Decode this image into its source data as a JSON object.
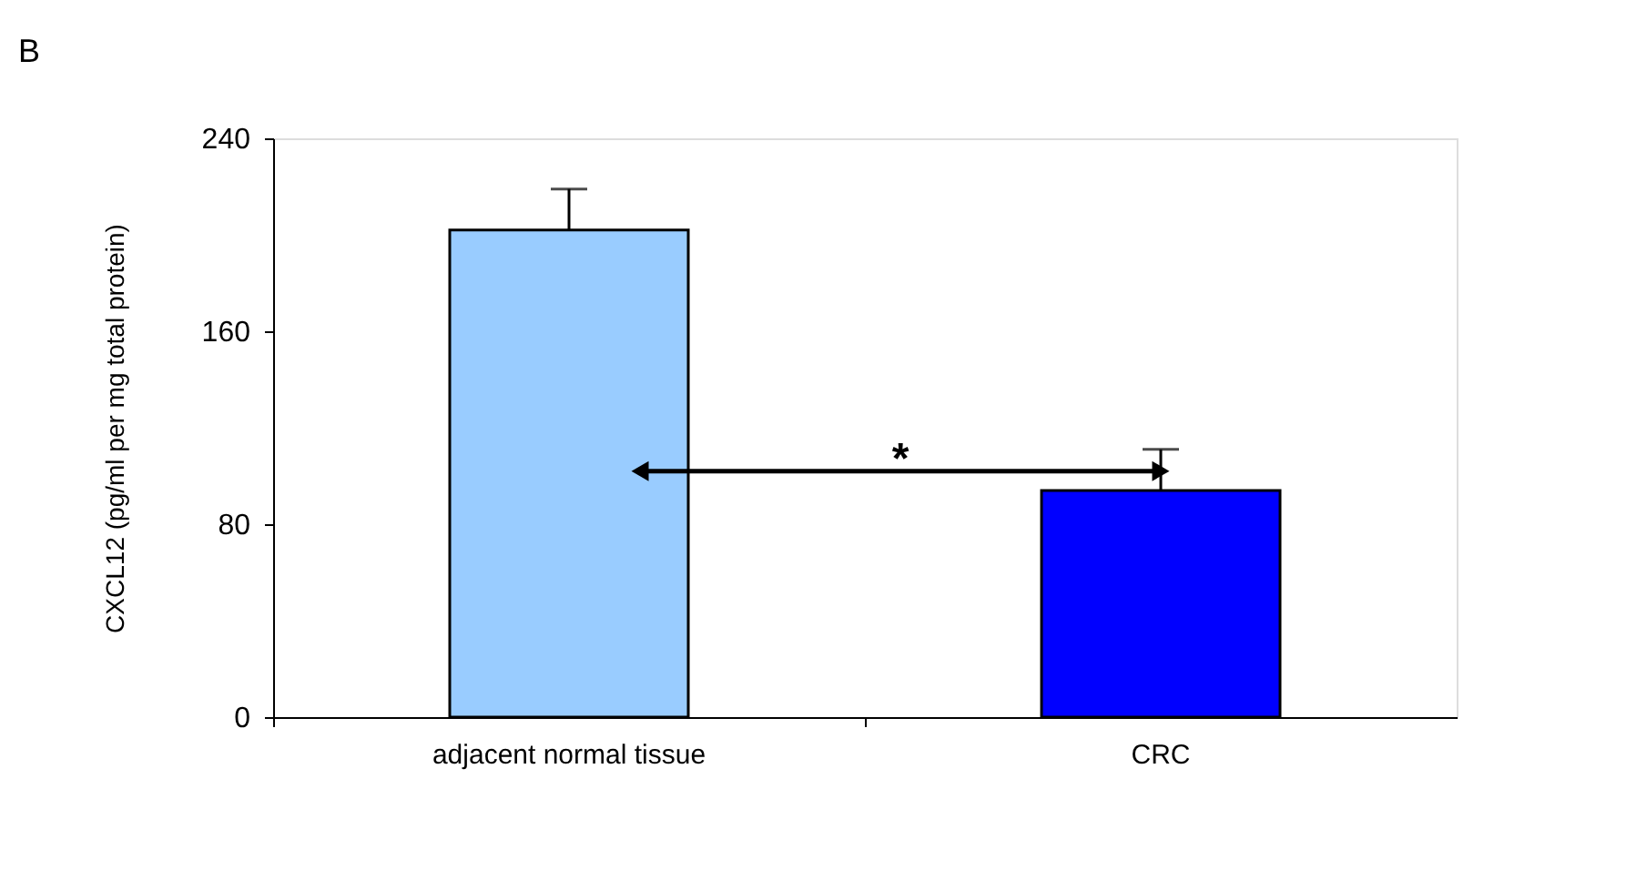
{
  "chart_data": {
    "type": "bar",
    "title": "B",
    "ylabel": "CXCL12 (pg/ml per mg total protein)",
    "categories": [
      "adjacent normal tissue",
      "CRC"
    ],
    "values": [
      202,
      94
    ],
    "colors": [
      "#99ccff",
      "#0000ff"
    ],
    "errors": [
      [
        202,
        219
      ],
      [
        94,
        111
      ]
    ],
    "ylim": [
      0,
      240
    ],
    "yticks": [
      0,
      80,
      160,
      240
    ],
    "annotations": [
      "*"
    ],
    "grid": false,
    "legend": false
  }
}
